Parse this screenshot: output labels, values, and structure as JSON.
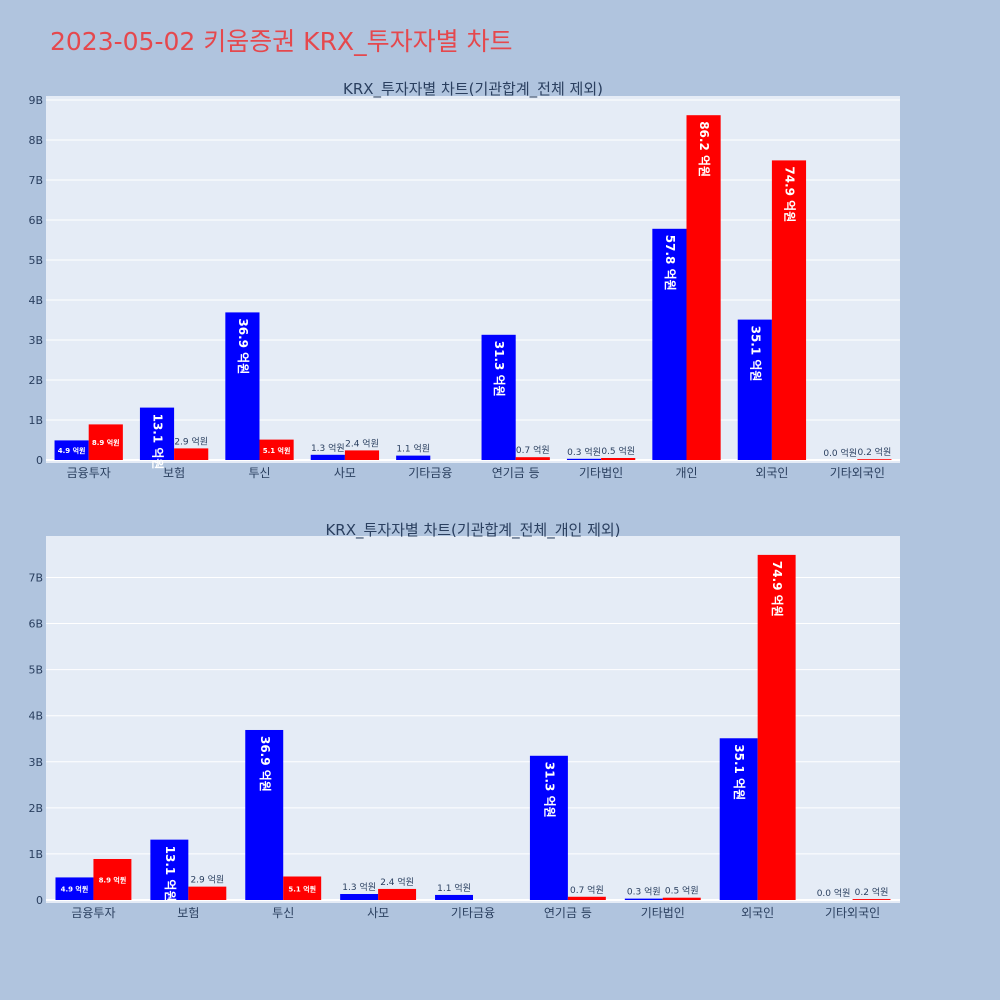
{
  "page_title": "2023-05-02 키움증권 KRX_투자자별 차트",
  "colors": {
    "series_a": "#0000ff",
    "series_b": "#ff0000",
    "plot_bg": "#e5ecf6",
    "page_bg": "#b0c4de",
    "title": "#e5484d"
  },
  "chart_data": [
    {
      "type": "bar",
      "title": "KRX_투자자별 차트(기관합계_전체 제외)",
      "categories": [
        "금융투자",
        "보험",
        "투신",
        "사모",
        "기타금융",
        "연기금 등",
        "기타법인",
        "개인",
        "외국인",
        "기타외국인"
      ],
      "series": [
        {
          "values": [
            0.49,
            1.31,
            3.69,
            0.13,
            0.11,
            3.13,
            0.03,
            5.78,
            3.51,
            0.0
          ],
          "labels": [
            "4.9 억원",
            "13.1 억원",
            "36.9 억원",
            "1.3 억원",
            "1.1 억원",
            "31.3 억원",
            "0.3 억원",
            "57.8 억원",
            "35.1 억원",
            "0.0 억원"
          ]
        },
        {
          "values": [
            0.89,
            0.29,
            0.51,
            0.24,
            0.0,
            0.07,
            0.05,
            8.62,
            7.49,
            0.02
          ],
          "labels": [
            "8.9 억원",
            "2.9 억원",
            "5.1 억원",
            "2.4 억원",
            "",
            "0.7 억원",
            "0.5 억원",
            "86.2 억원",
            "74.9 억원",
            "0.2 억원"
          ]
        }
      ],
      "ylim": [
        0,
        9.1
      ],
      "yticks": [
        "0",
        "1B",
        "2B",
        "3B",
        "4B",
        "5B",
        "6B",
        "7B",
        "8B",
        "9B"
      ],
      "grid": true
    },
    {
      "type": "bar",
      "title": "KRX_투자자별 차트(기관합계_전체_개인 제외)",
      "categories": [
        "금융투자",
        "보험",
        "투신",
        "사모",
        "기타금융",
        "연기금 등",
        "기타법인",
        "외국인",
        "기타외국인"
      ],
      "series": [
        {
          "values": [
            0.49,
            1.31,
            3.69,
            0.13,
            0.11,
            3.13,
            0.03,
            3.51,
            0.0
          ],
          "labels": [
            "4.9 억원",
            "13.1 억원",
            "36.9 억원",
            "1.3 억원",
            "1.1 억원",
            "31.3 억원",
            "0.3 억원",
            "35.1 억원",
            "0.0 억원"
          ]
        },
        {
          "values": [
            0.89,
            0.29,
            0.51,
            0.24,
            0.0,
            0.07,
            0.05,
            7.49,
            0.02
          ],
          "labels": [
            "8.9 억원",
            "2.9 억원",
            "5.1 억원",
            "2.4 억원",
            "",
            "0.7 억원",
            "0.5 억원",
            "74.9 억원",
            "0.2 억원"
          ]
        }
      ],
      "ylim": [
        0,
        7.9
      ],
      "yticks": [
        "0",
        "1B",
        "2B",
        "3B",
        "4B",
        "5B",
        "6B",
        "7B"
      ],
      "grid": true
    }
  ]
}
